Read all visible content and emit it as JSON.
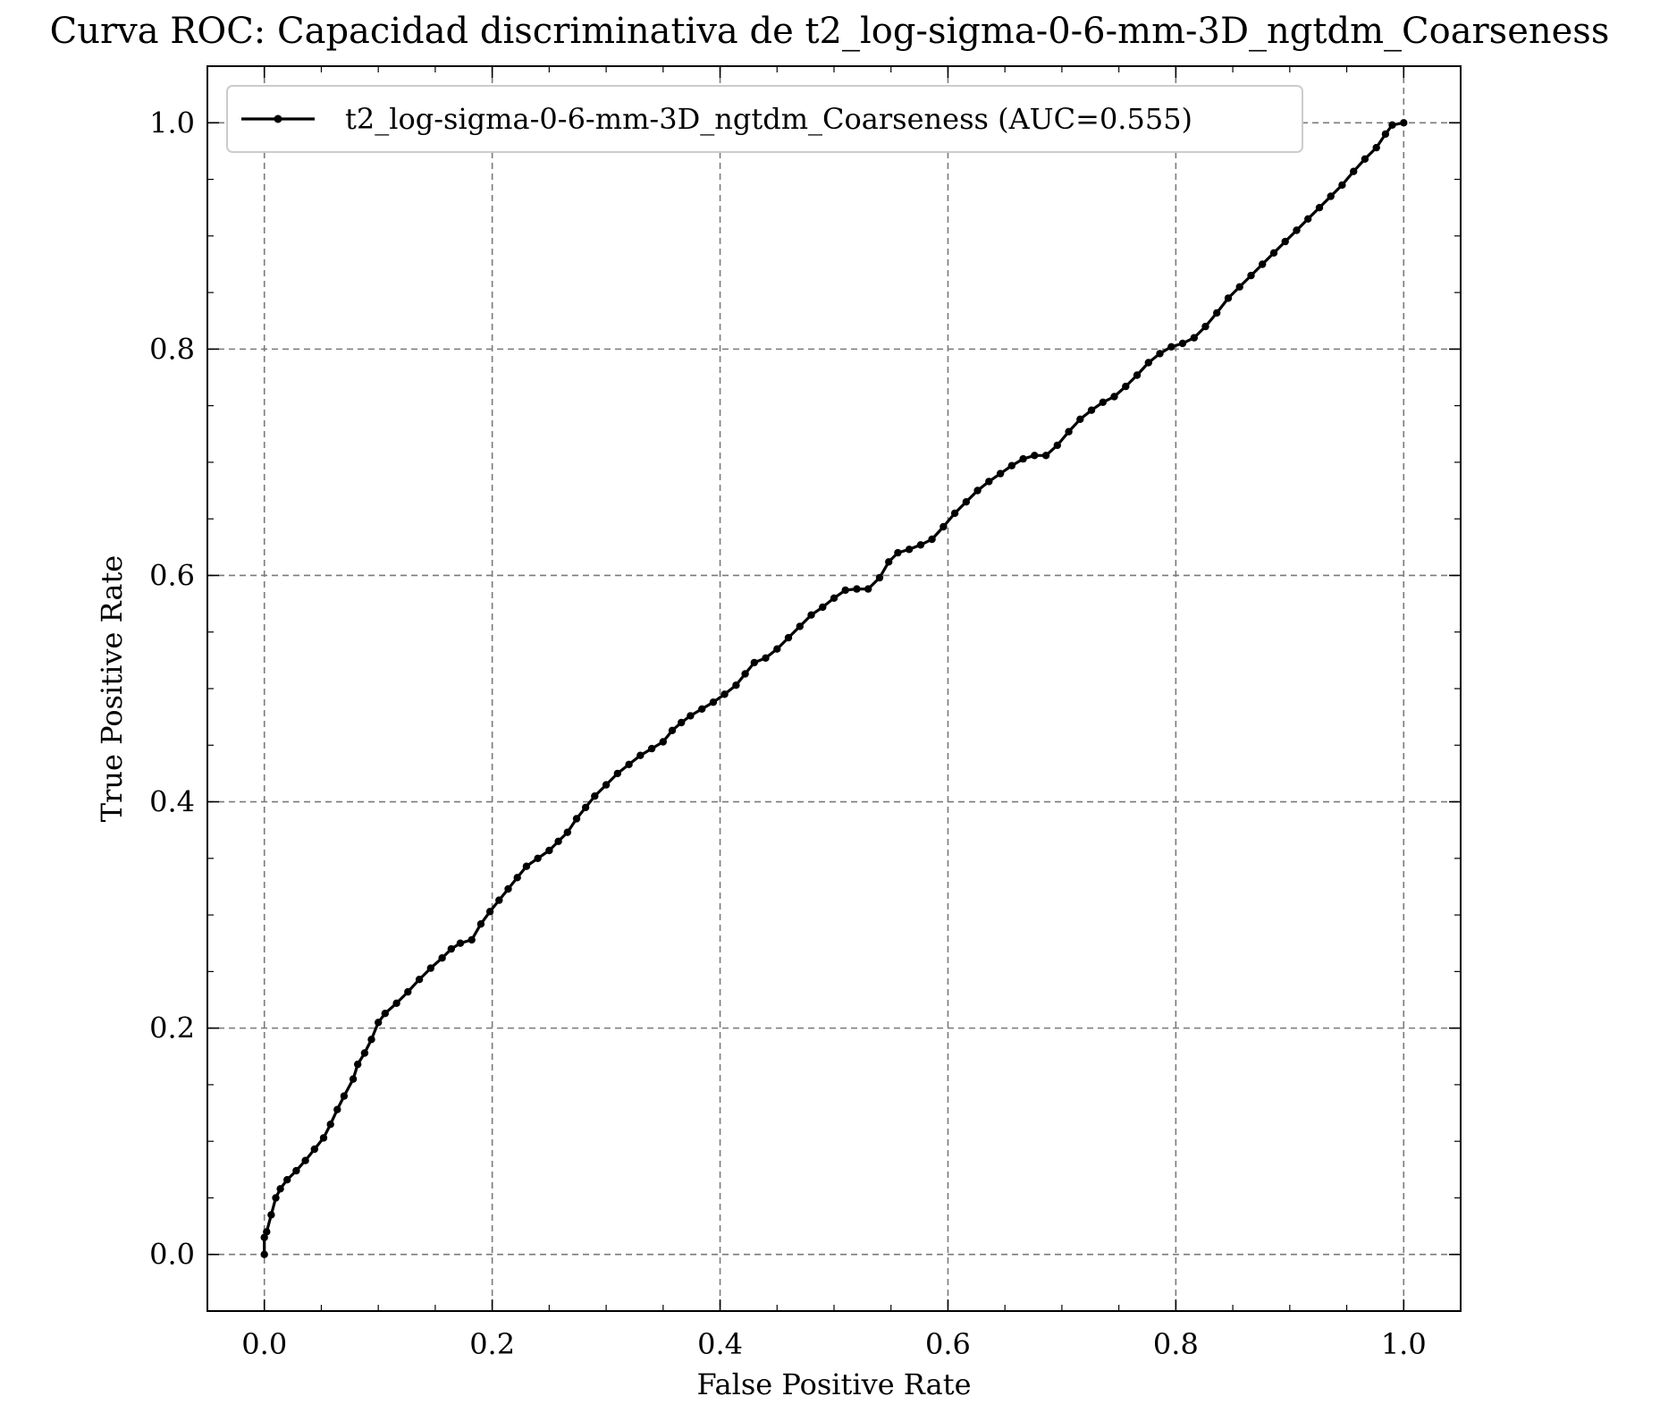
{
  "chart_data": {
    "type": "line",
    "title": "Curva ROC: Capacidad discriminativa de t2_log-sigma-0-6-mm-3D_ngtdm_Coarseness",
    "xlabel": "False Positive Rate",
    "ylabel": "True Positive Rate",
    "xlim": [
      -0.05,
      1.05
    ],
    "ylim": [
      -0.05,
      1.05
    ],
    "xticks": [
      0.0,
      0.2,
      0.4,
      0.6,
      0.8,
      1.0
    ],
    "yticks": [
      0.0,
      0.2,
      0.4,
      0.6,
      0.8,
      1.0
    ],
    "xtick_labels": [
      "0.0",
      "0.2",
      "0.4",
      "0.6",
      "0.8",
      "1.0"
    ],
    "ytick_labels": [
      "0.0",
      "0.2",
      "0.4",
      "0.6",
      "0.8",
      "1.0"
    ],
    "grid": true,
    "legend_position": "top-left",
    "series": [
      {
        "name": "t2_log-sigma-0-6-mm-3D_ngtdm_Coarseness (AUC=0.555)",
        "color": "#000000",
        "marker": "dot",
        "x": [
          0.0,
          0.0,
          0.002,
          0.006,
          0.01,
          0.014,
          0.02,
          0.028,
          0.036,
          0.044,
          0.052,
          0.058,
          0.064,
          0.07,
          0.078,
          0.082,
          0.088,
          0.094,
          0.1,
          0.106,
          0.116,
          0.126,
          0.136,
          0.146,
          0.156,
          0.164,
          0.172,
          0.182,
          0.19,
          0.198,
          0.206,
          0.214,
          0.222,
          0.23,
          0.24,
          0.25,
          0.258,
          0.266,
          0.274,
          0.282,
          0.29,
          0.3,
          0.31,
          0.32,
          0.33,
          0.34,
          0.35,
          0.358,
          0.366,
          0.374,
          0.384,
          0.394,
          0.404,
          0.414,
          0.422,
          0.43,
          0.44,
          0.45,
          0.46,
          0.47,
          0.48,
          0.49,
          0.5,
          0.51,
          0.52,
          0.53,
          0.54,
          0.548,
          0.556,
          0.566,
          0.576,
          0.586,
          0.596,
          0.606,
          0.616,
          0.626,
          0.636,
          0.646,
          0.656,
          0.666,
          0.676,
          0.686,
          0.696,
          0.706,
          0.716,
          0.726,
          0.736,
          0.746,
          0.756,
          0.766,
          0.776,
          0.786,
          0.796,
          0.806,
          0.816,
          0.826,
          0.836,
          0.846,
          0.856,
          0.866,
          0.876,
          0.886,
          0.896,
          0.906,
          0.916,
          0.926,
          0.936,
          0.946,
          0.956,
          0.966,
          0.976,
          0.984,
          0.99,
          1.0
        ],
        "y": [
          0.0,
          0.015,
          0.02,
          0.035,
          0.05,
          0.058,
          0.066,
          0.074,
          0.083,
          0.093,
          0.103,
          0.115,
          0.128,
          0.14,
          0.155,
          0.168,
          0.178,
          0.19,
          0.205,
          0.213,
          0.222,
          0.232,
          0.243,
          0.253,
          0.262,
          0.27,
          0.275,
          0.278,
          0.292,
          0.303,
          0.313,
          0.323,
          0.333,
          0.343,
          0.35,
          0.357,
          0.365,
          0.373,
          0.385,
          0.395,
          0.405,
          0.415,
          0.425,
          0.433,
          0.441,
          0.447,
          0.453,
          0.463,
          0.47,
          0.476,
          0.482,
          0.488,
          0.495,
          0.503,
          0.513,
          0.523,
          0.527,
          0.535,
          0.545,
          0.555,
          0.565,
          0.572,
          0.58,
          0.587,
          0.588,
          0.588,
          0.598,
          0.612,
          0.62,
          0.623,
          0.627,
          0.632,
          0.643,
          0.655,
          0.665,
          0.675,
          0.683,
          0.69,
          0.697,
          0.703,
          0.706,
          0.706,
          0.715,
          0.727,
          0.738,
          0.746,
          0.753,
          0.758,
          0.767,
          0.777,
          0.788,
          0.796,
          0.802,
          0.805,
          0.81,
          0.82,
          0.832,
          0.845,
          0.855,
          0.865,
          0.875,
          0.885,
          0.895,
          0.905,
          0.915,
          0.925,
          0.935,
          0.945,
          0.957,
          0.968,
          0.978,
          0.99,
          0.998,
          1.0
        ]
      }
    ]
  }
}
